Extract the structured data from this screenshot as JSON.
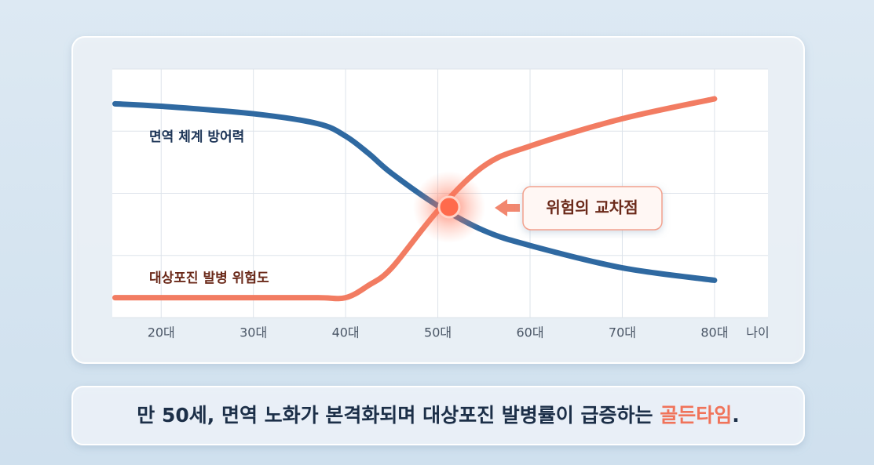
{
  "chart_data": {
    "type": "line",
    "x": [
      15,
      20,
      30,
      37,
      40,
      42.5,
      45,
      50,
      55,
      60,
      70,
      80
    ],
    "xlim": [
      14.7,
      85.8
    ],
    "xticks": [
      {
        "value": 20,
        "label": "20대"
      },
      {
        "value": 30,
        "label": "30대"
      },
      {
        "value": 40,
        "label": "40대"
      },
      {
        "value": 50,
        "label": "50대"
      },
      {
        "value": 60,
        "label": "60대"
      },
      {
        "value": 70,
        "label": "70대"
      },
      {
        "value": 80,
        "label": "80대"
      }
    ],
    "x_label": "나이",
    "ylim": [
      0,
      100
    ],
    "yticks": [
      0,
      25,
      50,
      75,
      100
    ],
    "grid": true,
    "series": [
      {
        "name": "면역 체계 방어력",
        "color": "#2f69a1",
        "values": [
          86,
          85,
          82,
          78,
          73,
          66,
          58,
          45,
          35,
          29,
          20,
          15
        ]
      },
      {
        "name": "대상포진 발병 위험도",
        "color": "#f27c62",
        "values": [
          8,
          8,
          8,
          8,
          8,
          13,
          20,
          43,
          61,
          69,
          80,
          88
        ]
      }
    ],
    "annotation": "위험의 교차점",
    "caption_parts": [
      "만 50세, 면역 노화가 본격화되며 대상포진 발병률이 급증하는 ",
      "골든타임",
      "."
    ]
  }
}
